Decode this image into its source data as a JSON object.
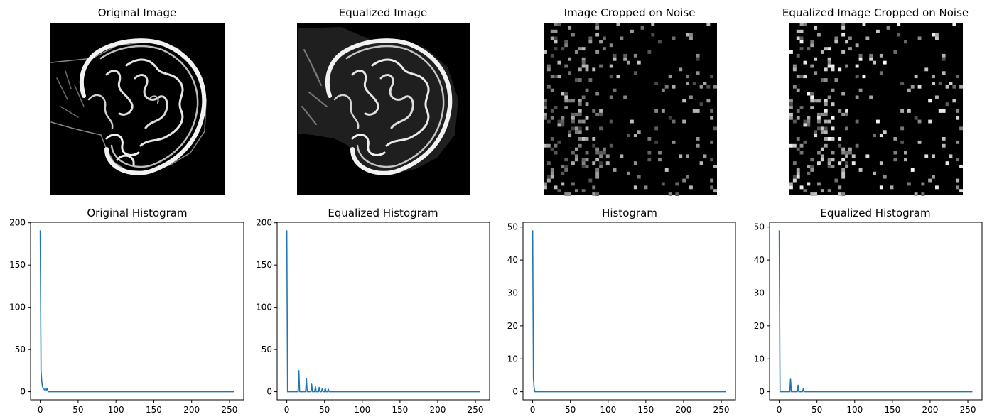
{
  "images": [
    {
      "title": "Original Image"
    },
    {
      "title": "Equalized Image"
    },
    {
      "title": "Image Cropped on Noise"
    },
    {
      "title": "Equalized Image Cropped on Noise"
    }
  ],
  "colors": {
    "line": "#1f77b4",
    "image_bg": "#000000"
  },
  "chart_data": [
    {
      "type": "line",
      "title": "Original Histogram",
      "xlabel": "",
      "ylabel": "",
      "xlim": [
        0,
        256
      ],
      "ylim": [
        0,
        200
      ],
      "xticks": [
        0,
        50,
        100,
        150,
        200,
        250
      ],
      "yticks": [
        0,
        50,
        100,
        150,
        200
      ],
      "grid": false,
      "series": [
        {
          "x": [
            0,
            1,
            2,
            3,
            4,
            5,
            6,
            7,
            8,
            9,
            10,
            11,
            15,
            256
          ],
          "y": [
            191,
            25,
            12,
            6,
            4,
            3,
            2,
            3,
            2,
            4,
            1,
            0,
            0,
            0
          ]
        }
      ]
    },
    {
      "type": "line",
      "title": "Equalized Histogram",
      "xlabel": "",
      "ylabel": "",
      "xlim": [
        0,
        256
      ],
      "ylim": [
        0,
        200
      ],
      "xticks": [
        0,
        50,
        100,
        150,
        200,
        250
      ],
      "yticks": [
        0,
        50,
        100,
        150,
        200
      ],
      "grid": false,
      "series": [
        {
          "x": [
            0,
            1,
            2,
            15,
            16,
            17,
            25,
            26,
            27,
            32,
            33,
            34,
            37,
            38,
            39,
            42,
            43,
            44,
            46,
            47,
            48,
            50,
            51,
            52,
            54,
            55,
            56,
            256
          ],
          "y": [
            191,
            0,
            0,
            0,
            25,
            0,
            0,
            16,
            0,
            0,
            9,
            0,
            0,
            6,
            0,
            0,
            5,
            0,
            0,
            4,
            0,
            0,
            4,
            0,
            0,
            3,
            0,
            0
          ]
        }
      ]
    },
    {
      "type": "line",
      "title": "Histogram",
      "xlabel": "",
      "ylabel": "",
      "xlim": [
        0,
        256
      ],
      "ylim": [
        0,
        50
      ],
      "xticks": [
        0,
        50,
        100,
        150,
        200,
        250
      ],
      "yticks": [
        0,
        10,
        20,
        30,
        40,
        50
      ],
      "grid": false,
      "series": [
        {
          "x": [
            0,
            1,
            2,
            3,
            4,
            256
          ],
          "y": [
            49,
            4,
            1,
            0,
            0,
            0
          ]
        }
      ]
    },
    {
      "type": "line",
      "title": "Equalized Histogram",
      "xlabel": "",
      "ylabel": "",
      "xlim": [
        0,
        256
      ],
      "ylim": [
        0,
        50
      ],
      "xticks": [
        0,
        50,
        100,
        150,
        200,
        250
      ],
      "yticks": [
        0,
        10,
        20,
        30,
        40,
        50
      ],
      "grid": false,
      "series": [
        {
          "x": [
            0,
            1,
            14,
            15,
            16,
            24,
            25,
            26,
            31,
            32,
            33,
            256
          ],
          "y": [
            49,
            0,
            0,
            4,
            0,
            0,
            2,
            0,
            0,
            1,
            0,
            0
          ]
        }
      ]
    }
  ]
}
